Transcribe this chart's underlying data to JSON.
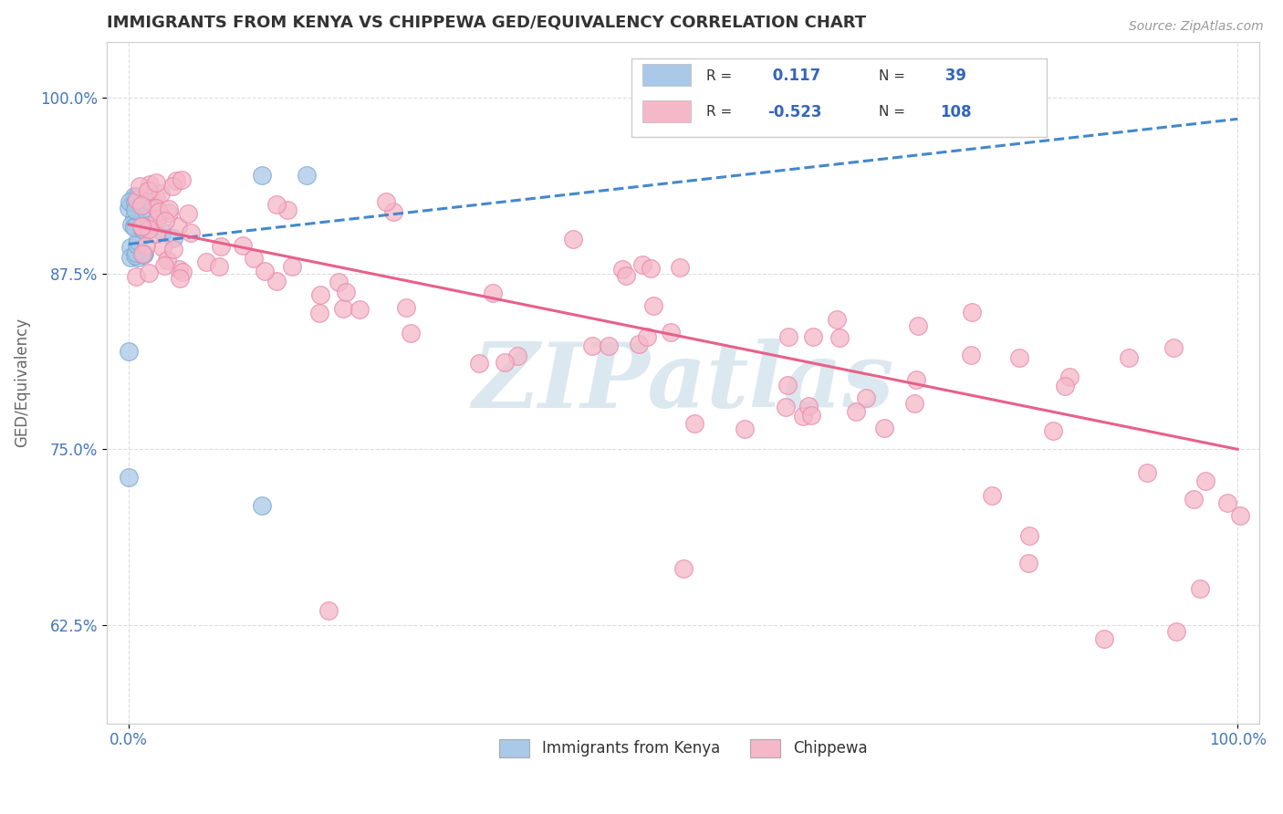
{
  "title": "IMMIGRANTS FROM KENYA VS CHIPPEWA GED/EQUIVALENCY CORRELATION CHART",
  "source_text": "Source: ZipAtlas.com",
  "ylabel": "GED/Equivalency",
  "xlim": [
    -0.02,
    1.02
  ],
  "ylim": [
    0.555,
    1.04
  ],
  "yticks": [
    0.625,
    0.75,
    0.875,
    1.0
  ],
  "ytick_labels": [
    "62.5%",
    "75.0%",
    "87.5%",
    "100.0%"
  ],
  "xticks": [
    0.0,
    1.0
  ],
  "xtick_labels": [
    "0.0%",
    "100.0%"
  ],
  "background_color": "#ffffff",
  "grid_color": "#dddddd",
  "title_color": "#333333",
  "axis_label_color": "#666666",
  "tick_color": "#4477bb",
  "watermark": "ZIPatlas",
  "watermark_color": "#dce8f0",
  "legend_box_blue": "#aac8e8",
  "legend_box_pink": "#f4b8c8",
  "legend_text_color": "#333333",
  "legend_value_color": "#3366bb",
  "legend_N_color": "#333333",
  "series": [
    {
      "name": "Immigrants from Kenya",
      "R": 0.117,
      "N": 39,
      "dot_color": "#aac8e8",
      "edge_color": "#7aaad0",
      "line_color": "#4488cc",
      "line_style": "--",
      "trend_x0": 0.0,
      "trend_y0": 0.896,
      "trend_x1": 1.0,
      "trend_y1": 0.985
    },
    {
      "name": "Chippewa",
      "R": -0.523,
      "N": 108,
      "dot_color": "#f4b8c8",
      "edge_color": "#e888aa",
      "line_color": "#e8608a",
      "line_style": "-",
      "trend_x0": 0.0,
      "trend_y0": 0.91,
      "trend_x1": 1.0,
      "trend_y1": 0.75
    }
  ]
}
